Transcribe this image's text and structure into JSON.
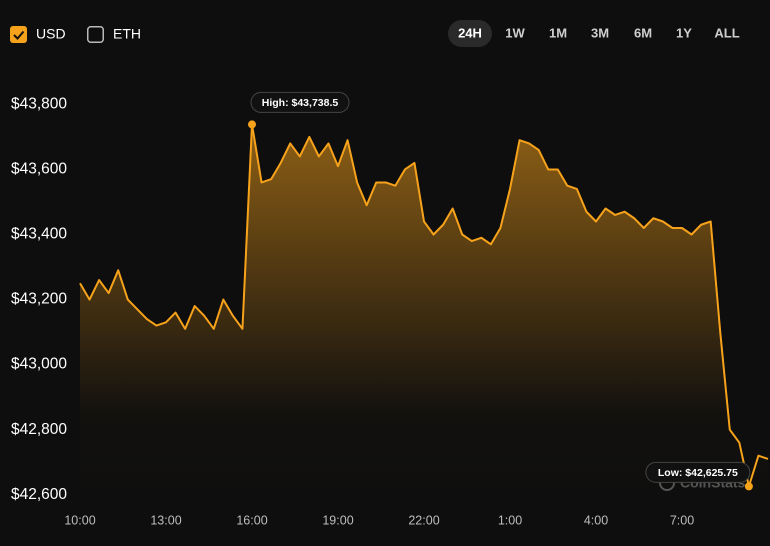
{
  "toolbar": {
    "currencies": [
      {
        "label": "USD",
        "checked": true
      },
      {
        "label": "ETH",
        "checked": false
      }
    ],
    "ranges": [
      "24H",
      "1W",
      "1M",
      "3M",
      "6M",
      "1Y",
      "ALL"
    ],
    "active_range": "24H"
  },
  "watermark": "CoinStats",
  "chart_data": {
    "type": "area",
    "categories": [
      "10:00",
      null,
      null,
      null,
      null,
      null,
      null,
      null,
      null,
      "13:00",
      null,
      null,
      null,
      null,
      null,
      null,
      null,
      null,
      "16:00",
      null,
      null,
      null,
      null,
      null,
      null,
      null,
      null,
      "19:00",
      null,
      null,
      null,
      null,
      null,
      null,
      null,
      null,
      "22:00",
      null,
      null,
      null,
      null,
      null,
      null,
      null,
      null,
      "1:00",
      null,
      null,
      null,
      null,
      null,
      null,
      null,
      null,
      "4:00",
      null,
      null,
      null,
      null,
      null,
      null,
      null,
      null,
      "7:00",
      null,
      null,
      null,
      null,
      null,
      null,
      null,
      null,
      null
    ],
    "values": [
      43250,
      43200,
      43260,
      43220,
      43290,
      43200,
      43170,
      43140,
      43120,
      43130,
      43160,
      43110,
      43180,
      43150,
      43110,
      43200,
      43150,
      43110,
      43738.5,
      43560,
      43570,
      43620,
      43680,
      43640,
      43700,
      43640,
      43680,
      43610,
      43690,
      43560,
      43490,
      43560,
      43560,
      43550,
      43600,
      43620,
      43440,
      43400,
      43430,
      43480,
      43400,
      43380,
      43390,
      43370,
      43420,
      43540,
      43690,
      43680,
      43660,
      43600,
      43600,
      43550,
      43540,
      43470,
      43440,
      43480,
      43460,
      43470,
      43450,
      43420,
      43450,
      43440,
      43420,
      43420,
      43400,
      43430,
      43440,
      43100,
      42800,
      42760,
      42625.75,
      42720,
      42710
    ],
    "color": "#f7a21b",
    "annotations": [
      "High: $43,738.5",
      "Low: $42,625.75"
    ],
    "ylim": [
      42550,
      43875
    ],
    "yticks": [
      {
        "value": 42600,
        "label": "$42,600"
      },
      {
        "value": 42800,
        "label": "$42,800"
      },
      {
        "value": 43000,
        "label": "$43,000"
      },
      {
        "value": 43200,
        "label": "$43,200"
      },
      {
        "value": 43400,
        "label": "$43,400"
      },
      {
        "value": 43600,
        "label": "$43,600"
      },
      {
        "value": 43800,
        "label": "$43,800"
      }
    ],
    "grid": false
  }
}
